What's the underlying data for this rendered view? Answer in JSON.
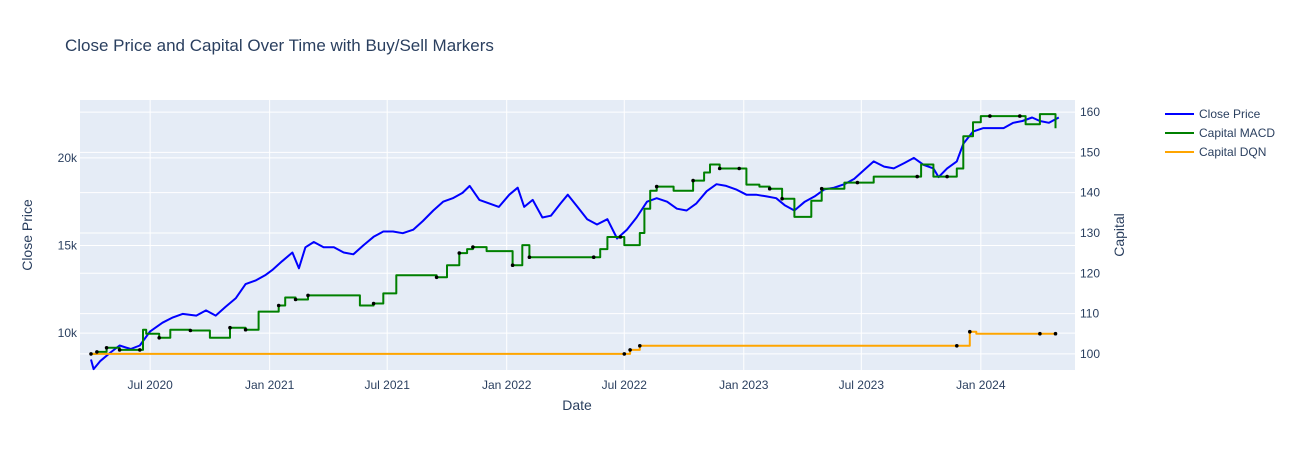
{
  "chart_data": {
    "type": "line",
    "title": "Close Price and Capital Over Time with Buy/Sell Markers",
    "xlabel": "Date",
    "ylabel": "Close Price",
    "y2label": "Capital",
    "xlim": [
      "2020-03-15",
      "2024-05-25"
    ],
    "ylim": [
      7900,
      23300
    ],
    "y2lim": [
      96,
      163
    ],
    "x_ticks": [
      "2020-07-01",
      "2021-01-01",
      "2021-07-01",
      "2022-01-01",
      "2022-07-01",
      "2023-01-01",
      "2023-07-01",
      "2024-01-01"
    ],
    "x_tick_labels": [
      "Jul 2020",
      "Jan 2021",
      "Jul 2021",
      "Jan 2022",
      "Jul 2022",
      "Jan 2023",
      "Jul 2023",
      "Jan 2024"
    ],
    "y_ticks": [
      10000,
      15000,
      20000
    ],
    "y_tick_labels": [
      "10k",
      "15k",
      "20k"
    ],
    "y2_ticks": [
      100,
      110,
      120,
      130,
      140,
      150,
      160
    ],
    "y2_tick_labels": [
      "100",
      "110",
      "120",
      "130",
      "140",
      "150",
      "160"
    ],
    "grid": true,
    "legend_position": "top-right",
    "colors": {
      "close": "#0000ff",
      "macd": "#008000",
      "dqn": "#ffa500",
      "marker": "#000000",
      "plot_bg": "#e5ecf6",
      "grid": "#ffffff"
    },
    "series": [
      {
        "name": "Close Price",
        "axis": "y",
        "shape": "line",
        "points": [
          [
            "2020-04-01",
            8500
          ],
          [
            "2020-04-05",
            7950
          ],
          [
            "2020-04-15",
            8400
          ],
          [
            "2020-05-01",
            8900
          ],
          [
            "2020-05-15",
            9300
          ],
          [
            "2020-06-01",
            9100
          ],
          [
            "2020-06-15",
            9300
          ],
          [
            "2020-07-01",
            10100
          ],
          [
            "2020-07-20",
            10600
          ],
          [
            "2020-08-05",
            10900
          ],
          [
            "2020-08-20",
            11100
          ],
          [
            "2020-09-10",
            11000
          ],
          [
            "2020-09-25",
            11300
          ],
          [
            "2020-10-10",
            11000
          ],
          [
            "2020-10-25",
            11500
          ],
          [
            "2020-11-10",
            12000
          ],
          [
            "2020-11-25",
            12800
          ],
          [
            "2020-12-10",
            13000
          ],
          [
            "2020-12-25",
            13300
          ],
          [
            "2021-01-05",
            13600
          ],
          [
            "2021-01-20",
            14100
          ],
          [
            "2021-02-05",
            14600
          ],
          [
            "2021-02-15",
            13700
          ],
          [
            "2021-02-25",
            14900
          ],
          [
            "2021-03-10",
            15200
          ],
          [
            "2021-03-25",
            14900
          ],
          [
            "2021-04-10",
            14900
          ],
          [
            "2021-04-25",
            14600
          ],
          [
            "2021-05-10",
            14500
          ],
          [
            "2021-05-25",
            15000
          ],
          [
            "2021-06-10",
            15500
          ],
          [
            "2021-06-25",
            15800
          ],
          [
            "2021-07-10",
            15800
          ],
          [
            "2021-07-25",
            15700
          ],
          [
            "2021-08-10",
            15900
          ],
          [
            "2021-08-25",
            16400
          ],
          [
            "2021-09-10",
            17000
          ],
          [
            "2021-09-25",
            17500
          ],
          [
            "2021-10-10",
            17700
          ],
          [
            "2021-10-25",
            18000
          ],
          [
            "2021-11-05",
            18400
          ],
          [
            "2021-11-20",
            17600
          ],
          [
            "2021-12-05",
            17400
          ],
          [
            "2021-12-20",
            17200
          ],
          [
            "2022-01-05",
            17900
          ],
          [
            "2022-01-18",
            18300
          ],
          [
            "2022-01-28",
            17200
          ],
          [
            "2022-02-10",
            17600
          ],
          [
            "2022-02-25",
            16600
          ],
          [
            "2022-03-10",
            16700
          ],
          [
            "2022-03-25",
            17400
          ],
          [
            "2022-04-05",
            17900
          ],
          [
            "2022-04-20",
            17200
          ],
          [
            "2022-05-05",
            16500
          ],
          [
            "2022-05-20",
            16200
          ],
          [
            "2022-06-05",
            16500
          ],
          [
            "2022-06-20",
            15400
          ],
          [
            "2022-07-05",
            15900
          ],
          [
            "2022-07-20",
            16600
          ],
          [
            "2022-08-05",
            17500
          ],
          [
            "2022-08-20",
            17700
          ],
          [
            "2022-09-05",
            17500
          ],
          [
            "2022-09-20",
            17100
          ],
          [
            "2022-10-05",
            17000
          ],
          [
            "2022-10-20",
            17400
          ],
          [
            "2022-11-05",
            18100
          ],
          [
            "2022-11-20",
            18500
          ],
          [
            "2022-12-05",
            18400
          ],
          [
            "2022-12-20",
            18200
          ],
          [
            "2023-01-05",
            17900
          ],
          [
            "2023-01-20",
            17900
          ],
          [
            "2023-02-05",
            17800
          ],
          [
            "2023-02-20",
            17700
          ],
          [
            "2023-03-05",
            17300
          ],
          [
            "2023-03-20",
            17000
          ],
          [
            "2023-04-05",
            17500
          ],
          [
            "2023-04-20",
            17800
          ],
          [
            "2023-05-05",
            18200
          ],
          [
            "2023-05-20",
            18300
          ],
          [
            "2023-06-05",
            18500
          ],
          [
            "2023-06-20",
            18800
          ],
          [
            "2023-07-05",
            19300
          ],
          [
            "2023-07-20",
            19800
          ],
          [
            "2023-08-05",
            19500
          ],
          [
            "2023-08-20",
            19400
          ],
          [
            "2023-09-05",
            19700
          ],
          [
            "2023-09-20",
            20000
          ],
          [
            "2023-10-05",
            19600
          ],
          [
            "2023-10-20",
            19400
          ],
          [
            "2023-10-28",
            18900
          ],
          [
            "2023-11-10",
            19400
          ],
          [
            "2023-11-25",
            19800
          ],
          [
            "2023-12-05",
            20800
          ],
          [
            "2023-12-20",
            21500
          ],
          [
            "2024-01-05",
            21700
          ],
          [
            "2024-01-20",
            21700
          ],
          [
            "2024-02-05",
            21700
          ],
          [
            "2024-02-20",
            22000
          ],
          [
            "2024-03-05",
            22100
          ],
          [
            "2024-03-20",
            22300
          ],
          [
            "2024-04-01",
            22100
          ],
          [
            "2024-04-15",
            22000
          ],
          [
            "2024-04-30",
            22300
          ]
        ]
      },
      {
        "name": "Capital MACD",
        "axis": "y2",
        "shape": "hv",
        "points": [
          [
            "2020-04-01",
            100
          ],
          [
            "2020-04-10",
            100.5
          ],
          [
            "2020-04-25",
            101.5
          ],
          [
            "2020-05-15",
            101
          ],
          [
            "2020-06-15",
            101
          ],
          [
            "2020-06-20",
            106
          ],
          [
            "2020-06-25",
            105
          ],
          [
            "2020-07-15",
            104
          ],
          [
            "2020-08-01",
            106
          ],
          [
            "2020-09-01",
            105.8
          ],
          [
            "2020-10-01",
            104
          ],
          [
            "2020-11-01",
            106.5
          ],
          [
            "2020-11-25",
            106
          ],
          [
            "2020-12-15",
            110.5
          ],
          [
            "2021-01-15",
            112
          ],
          [
            "2021-01-25",
            114
          ],
          [
            "2021-02-10",
            113.5
          ],
          [
            "2021-03-01",
            114.5
          ],
          [
            "2021-03-20",
            114.5
          ],
          [
            "2021-05-20",
            112
          ],
          [
            "2021-06-10",
            112.5
          ],
          [
            "2021-06-25",
            115
          ],
          [
            "2021-07-15",
            119.5
          ],
          [
            "2021-09-15",
            119
          ],
          [
            "2021-10-01",
            122
          ],
          [
            "2021-10-20",
            125
          ],
          [
            "2021-11-01",
            126
          ],
          [
            "2021-11-10",
            126.5
          ],
          [
            "2021-12-01",
            125.5
          ],
          [
            "2022-01-01",
            125.5
          ],
          [
            "2022-01-10",
            122
          ],
          [
            "2022-01-25",
            127
          ],
          [
            "2022-02-05",
            124
          ],
          [
            "2022-05-15",
            124
          ],
          [
            "2022-05-25",
            126
          ],
          [
            "2022-06-05",
            129
          ],
          [
            "2022-06-25",
            129
          ],
          [
            "2022-07-01",
            127
          ],
          [
            "2022-07-25",
            130
          ],
          [
            "2022-08-01",
            136
          ],
          [
            "2022-08-10",
            140.5
          ],
          [
            "2022-08-20",
            141.5
          ],
          [
            "2022-09-15",
            140.5
          ],
          [
            "2022-10-15",
            143
          ],
          [
            "2022-11-01",
            145
          ],
          [
            "2022-11-10",
            147
          ],
          [
            "2022-11-25",
            146
          ],
          [
            "2022-12-25",
            146
          ],
          [
            "2023-01-05",
            142
          ],
          [
            "2023-01-25",
            141.5
          ],
          [
            "2023-02-10",
            141
          ],
          [
            "2023-03-01",
            138.5
          ],
          [
            "2023-03-20",
            134
          ],
          [
            "2023-04-15",
            138
          ],
          [
            "2023-05-01",
            141
          ],
          [
            "2023-06-05",
            142.5
          ],
          [
            "2023-06-25",
            142.5
          ],
          [
            "2023-07-20",
            144
          ],
          [
            "2023-09-25",
            144
          ],
          [
            "2023-10-01",
            147
          ],
          [
            "2023-10-20",
            144
          ],
          [
            "2023-11-25",
            146
          ],
          [
            "2023-12-05",
            154
          ],
          [
            "2023-12-20",
            157.5
          ],
          [
            "2024-01-01",
            159
          ],
          [
            "2024-01-15",
            159
          ],
          [
            "2024-03-01",
            159
          ],
          [
            "2024-03-10",
            157
          ],
          [
            "2024-04-01",
            159.5
          ],
          [
            "2024-04-25",
            156
          ]
        ]
      },
      {
        "name": "Capital DQN",
        "axis": "y2",
        "shape": "hv",
        "points": [
          [
            "2020-04-01",
            100
          ],
          [
            "2022-07-01",
            100
          ],
          [
            "2022-07-10",
            101
          ],
          [
            "2022-07-25",
            102
          ],
          [
            "2023-11-25",
            102
          ],
          [
            "2023-12-15",
            105.5
          ],
          [
            "2023-12-25",
            105
          ],
          [
            "2024-04-01",
            105
          ],
          [
            "2024-04-25",
            105
          ]
        ]
      }
    ],
    "markers": [
      {
        "axis": "y2",
        "points": [
          [
            "2020-04-01",
            100
          ],
          [
            "2020-04-10",
            100.5
          ],
          [
            "2020-04-25",
            101.5
          ],
          [
            "2020-05-15",
            101
          ],
          [
            "2020-06-15",
            101
          ],
          [
            "2020-07-15",
            104
          ],
          [
            "2020-09-01",
            105.8
          ],
          [
            "2020-11-01",
            106.5
          ],
          [
            "2020-11-25",
            106
          ],
          [
            "2021-01-15",
            112
          ],
          [
            "2021-02-10",
            113.5
          ],
          [
            "2021-03-01",
            114.5
          ],
          [
            "2021-06-10",
            112.5
          ],
          [
            "2021-09-15",
            119
          ],
          [
            "2021-10-20",
            125
          ],
          [
            "2021-11-10",
            126.5
          ],
          [
            "2022-01-10",
            122
          ],
          [
            "2022-02-05",
            124
          ],
          [
            "2022-05-15",
            124
          ],
          [
            "2022-06-25",
            129
          ],
          [
            "2022-07-01",
            100
          ],
          [
            "2022-07-10",
            101
          ],
          [
            "2022-07-25",
            102
          ],
          [
            "2022-08-20",
            141.5
          ],
          [
            "2022-10-15",
            143
          ],
          [
            "2022-11-25",
            146
          ],
          [
            "2022-12-25",
            146
          ],
          [
            "2023-02-10",
            141
          ],
          [
            "2023-03-01",
            138.5
          ],
          [
            "2023-05-01",
            141
          ],
          [
            "2023-06-25",
            142.5
          ],
          [
            "2023-09-25",
            144
          ],
          [
            "2023-11-10",
            144
          ],
          [
            "2023-11-25",
            102
          ],
          [
            "2023-12-15",
            105.5
          ],
          [
            "2024-01-15",
            159
          ],
          [
            "2024-03-01",
            159
          ],
          [
            "2024-04-01",
            105
          ],
          [
            "2024-04-25",
            105
          ]
        ]
      }
    ]
  }
}
